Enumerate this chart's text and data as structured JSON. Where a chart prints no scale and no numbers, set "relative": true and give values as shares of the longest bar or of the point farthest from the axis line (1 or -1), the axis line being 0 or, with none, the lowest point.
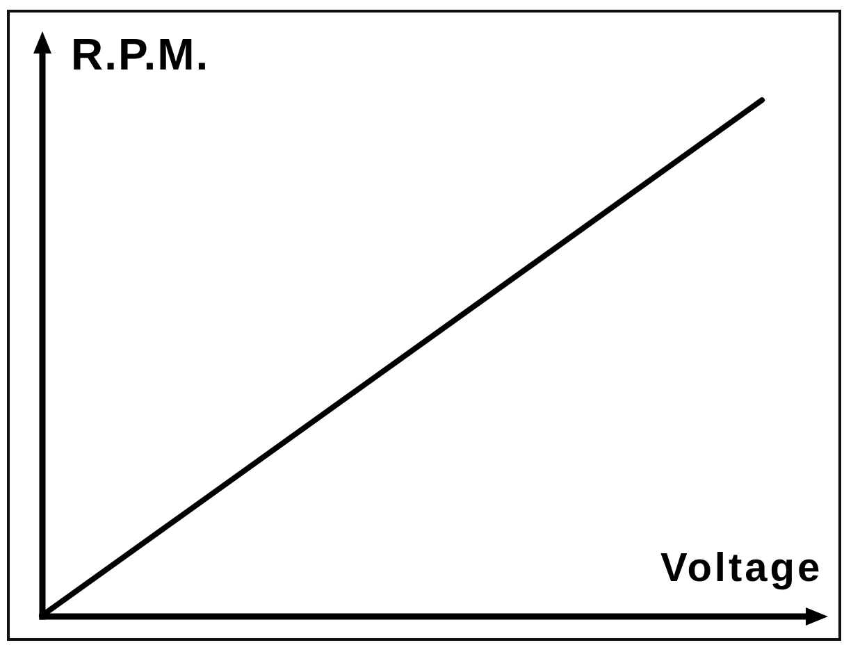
{
  "chart_data": {
    "type": "line",
    "relative": true,
    "xlabel": "Voltage",
    "ylabel": "R.P.M.",
    "categories": [
      null,
      null
    ],
    "values": [
      0,
      1
    ],
    "color": "#000000",
    "marker": "none"
  }
}
